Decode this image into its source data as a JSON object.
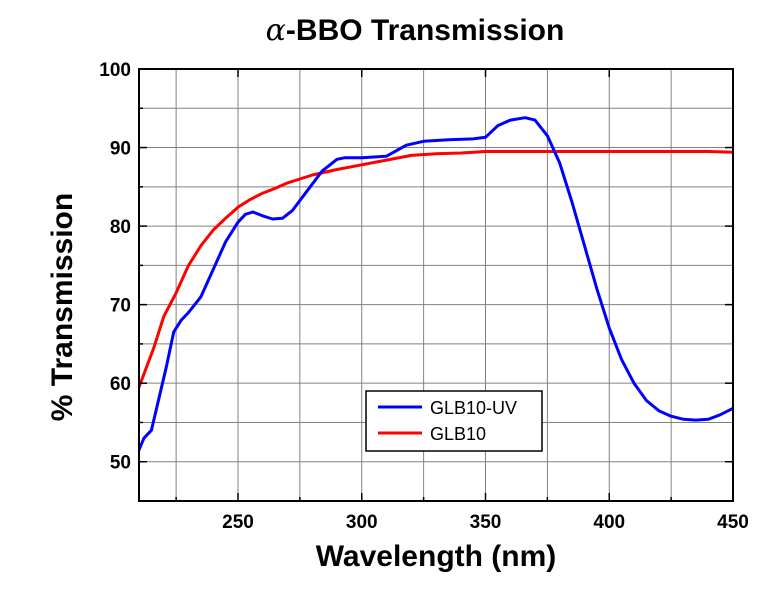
{
  "chart_data": {
    "type": "line",
    "title_prefix": "α",
    "title_rest": "-BBO Transmission",
    "xlabel": "Wavelength (nm)",
    "ylabel": "% Transmission",
    "xlim": [
      210,
      450
    ],
    "ylim": [
      45,
      100
    ],
    "x_ticks": [
      250,
      300,
      350,
      400,
      450
    ],
    "x_minor_ticks": [
      225,
      275,
      325,
      375,
      425
    ],
    "y_ticks": [
      50,
      60,
      70,
      80,
      90,
      100
    ],
    "y_minor_ticks": [
      55,
      65,
      75,
      85,
      95
    ],
    "grid": true,
    "legend_position": "bottom-center",
    "series": [
      {
        "name": "GLB10-UV",
        "color": "#0000ff",
        "x": [
          210,
          212,
          215,
          218,
          221,
          224,
          227,
          230,
          235,
          240,
          245,
          250,
          253,
          256,
          260,
          264,
          268,
          272,
          278,
          284,
          290,
          293,
          300,
          310,
          318,
          325,
          335,
          345,
          350,
          355,
          360,
          366,
          370,
          375,
          380,
          385,
          390,
          395,
          400,
          405,
          410,
          415,
          420,
          425,
          430,
          435,
          440,
          445,
          450
        ],
        "y": [
          51.5,
          53,
          54,
          58,
          62,
          66.5,
          68,
          69,
          71,
          74.5,
          78,
          80.5,
          81.5,
          81.8,
          81.3,
          80.9,
          81,
          82,
          84.5,
          87,
          88.5,
          88.7,
          88.7,
          88.9,
          90.3,
          90.8,
          91,
          91.1,
          91.3,
          92.8,
          93.5,
          93.8,
          93.5,
          91.5,
          88,
          83,
          77.5,
          72,
          67,
          63,
          60,
          57.8,
          56.5,
          55.8,
          55.4,
          55.3,
          55.4,
          56,
          56.8
        ]
      },
      {
        "name": "GLB10",
        "color": "#ff0000",
        "x": [
          210,
          213,
          216,
          220,
          225,
          230,
          235,
          240,
          245,
          250,
          255,
          260,
          265,
          270,
          275,
          280,
          290,
          300,
          310,
          320,
          330,
          340,
          350,
          360,
          380,
          400,
          420,
          440,
          450
        ],
        "y": [
          59.5,
          62,
          64.5,
          68.5,
          71.5,
          75,
          77.5,
          79.5,
          81,
          82.4,
          83.4,
          84.2,
          84.8,
          85.5,
          86,
          86.5,
          87.2,
          87.8,
          88.4,
          89,
          89.2,
          89.3,
          89.5,
          89.5,
          89.5,
          89.5,
          89.5,
          89.5,
          89.4
        ]
      }
    ]
  }
}
